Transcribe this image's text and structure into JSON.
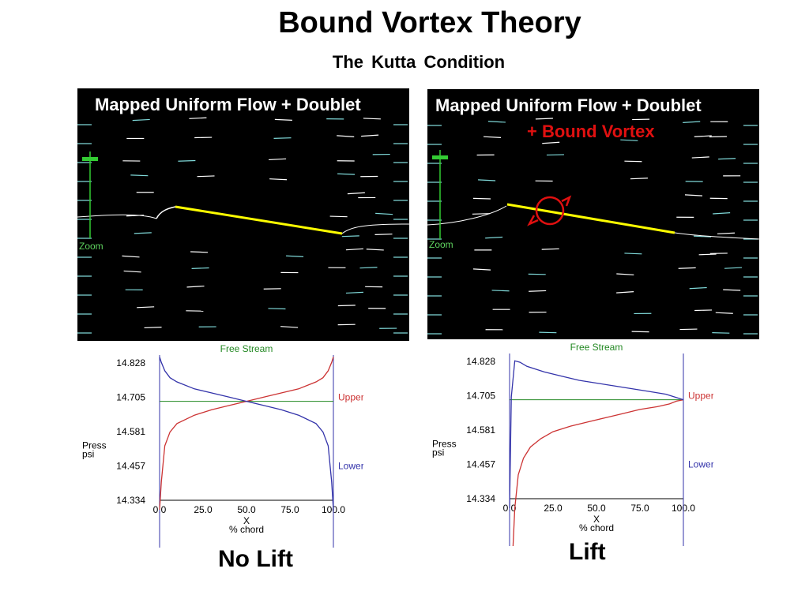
{
  "title": "Bound Vortex Theory",
  "subtitle": "The  Kutta  Condition",
  "left_panel": {
    "label": "Mapped Uniform Flow + Doublet",
    "zoom_label": "Zoom"
  },
  "right_panel": {
    "label_line1": "Mapped Uniform Flow + Doublet",
    "label_line2": "+ Bound  Vortex",
    "zoom_label": "Zoom"
  },
  "colors": {
    "background": "#000000",
    "streamline_white": "#ffffff",
    "streamline_cyan": "#7fd8d8",
    "airfoil": "#ffff00",
    "vortex": "#e01010",
    "upper": "#cc3333",
    "lower": "#3333aa",
    "free_stream": "#228822",
    "zoom": "#33cc33"
  },
  "chart_data": [
    {
      "type": "line",
      "caption": "No Lift",
      "header": "Free Stream",
      "ylabel": "Press\npsi",
      "xlabel": "X\n% chord",
      "y_ticks": [
        "14.828",
        "14.705",
        "14.581",
        "14.457",
        "14.334"
      ],
      "x_ticks": [
        "0.0",
        "25.0",
        "50.0",
        "75.0",
        "100.0"
      ],
      "ylim": [
        14.334,
        14.828
      ],
      "xlim": [
        0,
        100
      ],
      "free_stream": 14.69,
      "series": [
        {
          "name": "Upper",
          "color": "#cc3333",
          "x": [
            0,
            1,
            3,
            6,
            10,
            20,
            30,
            40,
            50,
            60,
            70,
            80,
            90,
            94,
            97,
            99,
            100
          ],
          "y": [
            14.3,
            14.4,
            14.53,
            14.58,
            14.61,
            14.64,
            14.66,
            14.675,
            14.69,
            14.705,
            14.72,
            14.735,
            14.76,
            14.775,
            14.8,
            14.83,
            14.85
          ]
        },
        {
          "name": "Lower",
          "color": "#3333aa",
          "x": [
            0,
            1,
            3,
            6,
            10,
            20,
            30,
            40,
            50,
            60,
            70,
            80,
            90,
            94,
            97,
            99,
            100
          ],
          "y": [
            14.85,
            14.83,
            14.8,
            14.775,
            14.76,
            14.735,
            14.72,
            14.705,
            14.69,
            14.675,
            14.66,
            14.64,
            14.61,
            14.58,
            14.53,
            14.4,
            14.3
          ]
        }
      ]
    },
    {
      "type": "line",
      "caption": "Lift",
      "header": "Free Stream",
      "ylabel": "Press\npsi",
      "xlabel": "X\n% chord",
      "y_ticks": [
        "14.828",
        "14.705",
        "14.581",
        "14.457",
        "14.334"
      ],
      "x_ticks": [
        "0.0",
        "25.0",
        "50.0",
        "75.0",
        "100.0"
      ],
      "ylim": [
        14.334,
        14.828
      ],
      "xlim": [
        0,
        100
      ],
      "free_stream": 14.69,
      "series": [
        {
          "name": "Upper",
          "color": "#cc3333",
          "x": [
            2,
            3,
            5,
            8,
            12,
            18,
            25,
            35,
            45,
            55,
            65,
            75,
            85,
            92,
            96,
            100
          ],
          "y": [
            14.15,
            14.3,
            14.42,
            14.48,
            14.52,
            14.55,
            14.575,
            14.595,
            14.61,
            14.625,
            14.64,
            14.655,
            14.665,
            14.675,
            14.685,
            14.69
          ]
        },
        {
          "name": "Lower",
          "color": "#3333aa",
          "x": [
            0,
            1,
            3,
            6,
            10,
            20,
            30,
            40,
            50,
            60,
            70,
            80,
            90,
            95,
            100
          ],
          "y": [
            14.3,
            14.7,
            14.83,
            14.825,
            14.81,
            14.79,
            14.775,
            14.76,
            14.75,
            14.74,
            14.73,
            14.72,
            14.71,
            14.7,
            14.69
          ]
        }
      ]
    }
  ]
}
